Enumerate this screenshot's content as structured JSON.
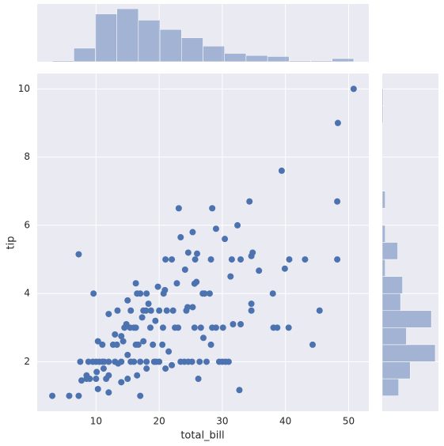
{
  "chart_data": [
    {
      "type": "scatter",
      "xlabel": "total_bill",
      "ylabel": "tip",
      "color": "#4c72b0",
      "xlim": [
        0.68,
        53.2
      ],
      "ylim": [
        0.55,
        10.45
      ],
      "xticks": [
        10,
        20,
        30,
        40,
        50
      ],
      "yticks": [
        2,
        4,
        6,
        8,
        10
      ],
      "grid": true,
      "x": [
        50.8,
        48.3,
        48.2,
        39.4,
        34.3,
        32.4,
        28.4,
        23.1,
        29.0,
        30.4,
        25.3,
        23.4,
        7.25,
        24.6,
        26.0,
        21.0,
        22.0,
        25.7,
        28.2,
        31.5,
        32.9,
        34.8,
        34.6,
        40.6,
        43.1,
        48.2,
        35.8,
        39.9,
        24.1,
        31.3,
        22.8,
        16.3,
        25.9,
        25.6,
        9.6,
        16.5,
        17.0,
        18.0,
        20.7,
        19.8,
        20.9,
        26.9,
        27.2,
        38.0,
        15.0,
        17.9,
        18.3,
        15.5,
        12.0,
        13.4,
        14.5,
        14.8,
        15.4,
        16.0,
        16.3,
        17.5,
        18.7,
        20.0,
        21.2,
        22.2,
        24.5,
        24.3,
        25.3,
        28.0,
        34.6,
        34.6,
        38.1,
        38.7,
        40.5,
        45.4,
        44.3,
        30.1,
        31.7,
        32.9,
        28.4,
        29.0,
        26.6,
        25.6,
        23.0,
        22.5,
        20.6,
        19.4,
        18.6,
        17.3,
        10.3,
        11.0,
        12.7,
        13.3,
        14.0,
        14.3,
        15.0,
        16.7,
        17.5,
        19.0,
        20.5,
        21.5,
        23.4,
        24.0,
        26.4,
        27.5,
        29.5,
        30.0,
        30.5,
        31.0,
        28.2,
        27.0,
        25.2,
        22.0,
        20.0,
        19.2,
        18.0,
        17.0,
        16.0,
        15.5,
        13.0,
        12.0,
        11.0,
        10.5,
        10.0,
        9.5,
        8.8,
        7.5,
        7.7,
        8.5,
        9.0,
        10.0,
        10.3,
        11.6,
        12.0,
        14.0,
        15.0,
        16.5,
        17.0,
        18.0,
        12.0,
        3.07,
        5.75,
        7.25,
        8.5,
        11.2,
        26.2,
        32.7,
        13.0,
        14.0,
        16.3,
        19.5,
        21.0,
        24.6,
        10.1,
        11.3,
        13.5
      ],
      "values": [
        10.0,
        9.0,
        6.7,
        7.6,
        6.7,
        6.0,
        6.5,
        6.5,
        5.9,
        5.6,
        5.8,
        5.65,
        5.15,
        5.2,
        5.17,
        5.0,
        5.0,
        5.0,
        5.0,
        5.0,
        5.0,
        5.2,
        5.1,
        5.0,
        5.0,
        5.0,
        4.67,
        4.73,
        4.7,
        4.5,
        4.3,
        4.3,
        4.34,
        4.29,
        4.0,
        4.0,
        4.0,
        4.0,
        4.0,
        4.2,
        4.1,
        4.0,
        4.0,
        4.0,
        3.8,
        3.5,
        3.7,
        3.5,
        3.4,
        3.5,
        3.0,
        3.1,
        3.0,
        3.0,
        3.0,
        3.5,
        3.5,
        3.5,
        3.5,
        3.5,
        3.6,
        3.5,
        3.6,
        4.0,
        3.5,
        3.7,
        3.0,
        3.0,
        3.0,
        3.5,
        2.5,
        3.0,
        3.1,
        3.1,
        3.0,
        3.0,
        3.0,
        3.0,
        3.0,
        3.0,
        3.0,
        3.2,
        3.0,
        3.3,
        2.6,
        2.5,
        2.5,
        2.5,
        2.0,
        2.6,
        2.2,
        2.5,
        2.6,
        2.5,
        2.5,
        2.3,
        2.0,
        2.0,
        2.0,
        2.0,
        2.0,
        2.0,
        2.0,
        2.0,
        2.5,
        2.7,
        2.0,
        1.9,
        2.0,
        2.0,
        2.0,
        2.0,
        2.0,
        2.0,
        2.0,
        2.0,
        2.0,
        2.0,
        2.0,
        2.0,
        2.0,
        2.0,
        1.45,
        1.5,
        1.5,
        1.5,
        1.2,
        1.5,
        1.6,
        1.4,
        1.5,
        1.6,
        1.0,
        1.8,
        1.1,
        1.0,
        1.0,
        1.0,
        1.6,
        1.8,
        1.5,
        1.17,
        2.8,
        2.75,
        2.5,
        2.0,
        1.8,
        2.0,
        1.7,
        2.0,
        1.95
      ]
    },
    {
      "type": "histogram",
      "color": "#4c72b0",
      "bins": [
        3.07,
        6.48,
        9.89,
        13.3,
        16.71,
        20.12,
        23.53,
        26.94,
        30.35,
        33.76,
        37.17,
        40.58,
        43.99,
        47.4,
        50.81
      ],
      "values": [
        1,
        13,
        46,
        51,
        40,
        31,
        23,
        15,
        8,
        6,
        5,
        1,
        1,
        3
      ],
      "xlim": [
        0.68,
        53.2
      ],
      "ylim": [
        0,
        55.6
      ]
    },
    {
      "type": "histogram",
      "orientation": "horizontal",
      "color": "#4c72b0",
      "bins": [
        1.0,
        1.5,
        2.0,
        2.5,
        3.0,
        3.5,
        4.0,
        4.5,
        5.0,
        5.5,
        6.0,
        6.5,
        7.0,
        7.5,
        8.0,
        8.5,
        9.0,
        9.5,
        10.0
      ],
      "values": [
        17,
        29,
        55,
        25,
        51,
        19,
        21,
        3,
        16,
        3,
        0,
        3,
        0,
        0,
        0,
        0,
        1,
        1
      ],
      "ylim": [
        0.55,
        10.45
      ],
      "xlim": [
        0,
        58.3
      ]
    }
  ]
}
